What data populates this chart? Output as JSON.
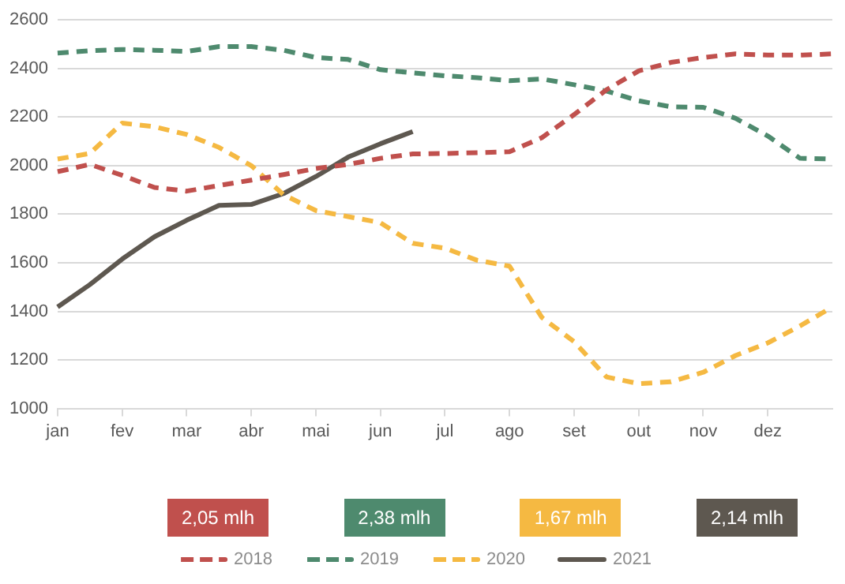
{
  "chart_data": {
    "type": "line",
    "categories": [
      "jan",
      null,
      "fev",
      null,
      "mar",
      null,
      "abr",
      null,
      "mai",
      null,
      "jun",
      null,
      "jul",
      null,
      "ago",
      null,
      "set",
      null,
      "out",
      null,
      "nov",
      null,
      "dez",
      null,
      null
    ],
    "ylim": [
      1000,
      2600
    ],
    "yticks": [
      1000,
      1200,
      1400,
      1600,
      1800,
      2000,
      2200,
      2400,
      2600
    ],
    "grid": "y",
    "legend": "bottom",
    "marker": "none",
    "annotations": [
      "2,05 mlh",
      "2,38 mlh",
      "1,67 mlh",
      "2,14 mlh"
    ],
    "series": [
      {
        "name": "2018",
        "color": "#c0504d",
        "line_style": "dashed",
        "values": [
          1975,
          2005,
          1960,
          1910,
          1895,
          1918,
          1940,
          1963,
          1988,
          2005,
          2030,
          2048,
          2050,
          2053,
          2057,
          2115,
          2210,
          2312,
          2390,
          2425,
          2445,
          2460,
          2455,
          2455,
          2460
        ]
      },
      {
        "name": "2019",
        "color": "#4e8a6e",
        "line_style": "dashed",
        "values": [
          2463,
          2473,
          2478,
          2475,
          2470,
          2490,
          2490,
          2475,
          2445,
          2437,
          2395,
          2382,
          2370,
          2362,
          2350,
          2357,
          2333,
          2307,
          2267,
          2242,
          2240,
          2195,
          2122,
          2030,
          2027
        ]
      },
      {
        "name": "2020",
        "color": "#f5b942",
        "line_style": "dashed",
        "values": [
          2027,
          2050,
          2175,
          2160,
          2128,
          2075,
          2000,
          1880,
          1815,
          1790,
          1765,
          1680,
          1660,
          1610,
          1586,
          1375,
          1275,
          1130,
          1102,
          1110,
          1149,
          1218,
          1270,
          1340,
          1418
        ]
      },
      {
        "name": "2021",
        "color": "#5e5850",
        "line_style": "solid",
        "values": [
          1418,
          1510,
          1615,
          1707,
          1775,
          1836,
          1840,
          1885,
          1955,
          2035,
          2090,
          2140,
          null,
          null,
          null,
          null,
          null,
          null,
          null,
          null,
          null,
          null,
          null,
          null,
          null
        ]
      }
    ]
  }
}
